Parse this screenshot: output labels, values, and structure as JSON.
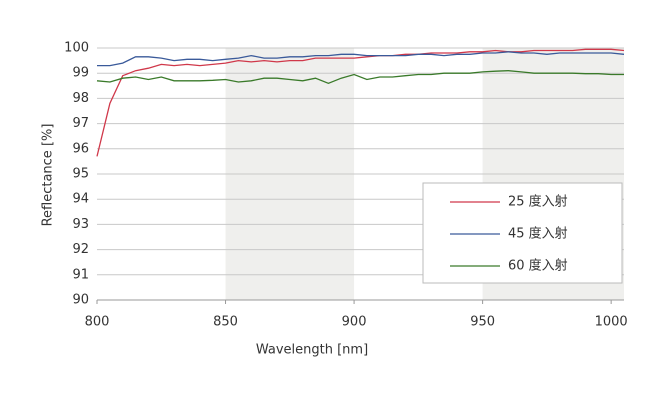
{
  "chart_data": {
    "type": "line",
    "xlabel": "Wavelength [nm]",
    "ylabel": "Reflectance [%]",
    "x": [
      800,
      805,
      810,
      815,
      820,
      825,
      830,
      835,
      840,
      845,
      850,
      855,
      860,
      865,
      870,
      875,
      880,
      885,
      890,
      895,
      900,
      905,
      910,
      915,
      920,
      925,
      930,
      935,
      940,
      945,
      950,
      955,
      960,
      965,
      970,
      975,
      980,
      985,
      990,
      995,
      1000,
      1005
    ],
    "series": [
      {
        "name": "25 度入射",
        "color": "#d0384a",
        "values": [
          95.7,
          97.8,
          98.9,
          99.1,
          99.2,
          99.35,
          99.3,
          99.35,
          99.3,
          99.35,
          99.4,
          99.5,
          99.45,
          99.5,
          99.45,
          99.5,
          99.5,
          99.6,
          99.6,
          99.6,
          99.6,
          99.65,
          99.7,
          99.7,
          99.75,
          99.75,
          99.8,
          99.8,
          99.8,
          99.85,
          99.85,
          99.9,
          99.85,
          99.85,
          99.9,
          99.9,
          99.9,
          99.9,
          99.95,
          99.95,
          99.95,
          99.9
        ]
      },
      {
        "name": "45 度入射",
        "color": "#3a5a9a",
        "values": [
          99.3,
          99.3,
          99.4,
          99.65,
          99.65,
          99.6,
          99.5,
          99.55,
          99.55,
          99.5,
          99.55,
          99.6,
          99.7,
          99.6,
          99.6,
          99.65,
          99.65,
          99.7,
          99.7,
          99.75,
          99.75,
          99.7,
          99.7,
          99.7,
          99.7,
          99.75,
          99.75,
          99.7,
          99.75,
          99.75,
          99.8,
          99.8,
          99.85,
          99.8,
          99.8,
          99.75,
          99.8,
          99.8,
          99.8,
          99.8,
          99.8,
          99.75
        ]
      },
      {
        "name": "60 度入射",
        "color": "#3a7a2a",
        "values": [
          98.7,
          98.65,
          98.8,
          98.85,
          98.75,
          98.85,
          98.7,
          98.7,
          98.7,
          98.72,
          98.75,
          98.65,
          98.7,
          98.8,
          98.8,
          98.75,
          98.7,
          98.8,
          98.6,
          98.8,
          98.95,
          98.75,
          98.85,
          98.85,
          98.9,
          98.95,
          98.95,
          99.0,
          99.0,
          99.0,
          99.05,
          99.08,
          99.1,
          99.05,
          99.0,
          99.0,
          99.0,
          99.0,
          98.98,
          98.98,
          98.95,
          98.95
        ]
      }
    ],
    "xlim": [
      800,
      1005
    ],
    "xticks": [
      800,
      850,
      900,
      950,
      1000
    ],
    "ylim": [
      90,
      100
    ],
    "yticks": [
      90,
      91,
      92,
      93,
      94,
      95,
      96,
      97,
      98,
      99,
      100
    ],
    "shaded_ranges": [
      [
        850,
        900
      ],
      [
        950,
        1005
      ]
    ],
    "grid": true,
    "legend": "right"
  }
}
